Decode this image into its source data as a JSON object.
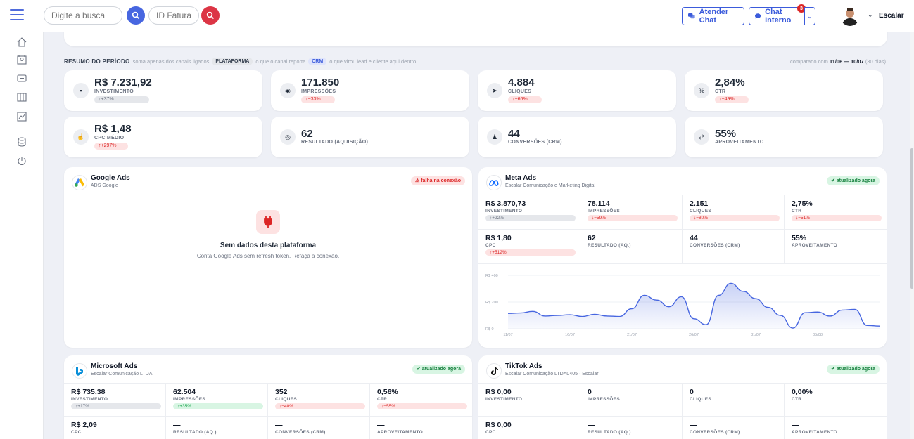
{
  "header": {
    "search_placeholder": "Digite a busca",
    "invoice_placeholder": "ID Fatura",
    "attend_chat": "Atender Chat",
    "internal_chat": "Chat Interno",
    "internal_chat_count": "3",
    "user_name": "Escalar"
  },
  "summary": {
    "title": "RESUMO DO PERÍODO",
    "text1": "soma apenas dos canais ligados",
    "platform_pill": "PLATAFORMA",
    "text2": "o que o canal reporta",
    "crm_pill": "CRM",
    "text3": "o que virou lead e cliente aqui dentro",
    "compare_prefix": "comparado com",
    "compare_range": "11/06 — 10/07",
    "compare_days": "(30 dias)"
  },
  "kpis": [
    {
      "value": "R$ 7.231,92",
      "label": "INVESTIMENTO",
      "delta": "↑+37%",
      "kind": "neu",
      "icon": "wallet-icon"
    },
    {
      "value": "171.850",
      "label": "IMPRESSÕES",
      "delta": "↓−33%",
      "kind": "dn",
      "icon": "eye-icon"
    },
    {
      "value": "4.884",
      "label": "CLIQUES",
      "delta": "↓−66%",
      "kind": "dn",
      "icon": "cursor-icon"
    },
    {
      "value": "2,84%",
      "label": "CTR",
      "delta": "↓−49%",
      "kind": "dn",
      "icon": "percent-icon"
    },
    {
      "value": "R$ 1,48",
      "label": "CPC MÉDIO",
      "delta": "↑+297%",
      "kind": "upr",
      "icon": "hand-pointer-icon"
    },
    {
      "value": "62",
      "label": "RESULTADO (AQUISIÇÃO)",
      "delta": "",
      "kind": "",
      "icon": "target-icon"
    },
    {
      "value": "44",
      "label": "CONVERSÕES (CRM)",
      "delta": "",
      "kind": "",
      "icon": "user-check-icon"
    },
    {
      "value": "55%",
      "label": "APROVEITAMENTO",
      "delta": "",
      "kind": "",
      "icon": "exchange-icon"
    }
  ],
  "google": {
    "title": "Google Ads",
    "subtitle": "ADS Google",
    "status": "⚠ falha na conexão",
    "empty_title": "Sem dados desta plataforma",
    "empty_sub": "Conta Google Ads sem refresh token. Refaça a conexão."
  },
  "meta": {
    "title": "Meta Ads",
    "subtitle": "Escalar Comunicação e Marketing Digital",
    "status": "✔ atualizado agora",
    "cells": [
      {
        "value": "R$ 3.870,73",
        "label": "INVESTIMENTO",
        "delta": "↑+22%",
        "kind": "neu"
      },
      {
        "value": "78.114",
        "label": "IMPRESSÕES",
        "delta": "↓−59%",
        "kind": "dn"
      },
      {
        "value": "2.151",
        "label": "CLIQUES",
        "delta": "↓−80%",
        "kind": "dn"
      },
      {
        "value": "2,75%",
        "label": "CTR",
        "delta": "↓−51%",
        "kind": "dn"
      },
      {
        "value": "R$ 1,80",
        "label": "CPC",
        "delta": "↑+512%",
        "kind": "upr"
      },
      {
        "value": "62",
        "label": "RESULTADO (AQ.)",
        "delta": "",
        "kind": ""
      },
      {
        "value": "44",
        "label": "CONVERSÕES (CRM)",
        "delta": "",
        "kind": ""
      },
      {
        "value": "55%",
        "label": "APROVEITAMENTO",
        "delta": "",
        "kind": ""
      }
    ]
  },
  "microsoft": {
    "title": "Microsoft Ads",
    "subtitle": "Escalar Comunicação LTDA",
    "status": "✔ atualizado agora",
    "cells": [
      {
        "value": "R$ 735,38",
        "label": "INVESTIMENTO",
        "delta": "↑+17%",
        "kind": "neu"
      },
      {
        "value": "62.504",
        "label": "IMPRESSÕES",
        "delta": "↑+35%",
        "kind": "up"
      },
      {
        "value": "352",
        "label": "CLIQUES",
        "delta": "↓−40%",
        "kind": "dn"
      },
      {
        "value": "0,56%",
        "label": "CTR",
        "delta": "↓−55%",
        "kind": "dn"
      },
      {
        "value": "R$ 2,09",
        "label": "CPC",
        "delta": "",
        "kind": ""
      },
      {
        "value": "—",
        "label": "RESULTADO (AQ.)",
        "delta": "",
        "kind": ""
      },
      {
        "value": "—",
        "label": "CONVERSÕES (CRM)",
        "delta": "",
        "kind": ""
      },
      {
        "value": "—",
        "label": "APROVEITAMENTO",
        "delta": "",
        "kind": ""
      }
    ]
  },
  "tiktok": {
    "title": "TikTok Ads",
    "subtitle": "Escalar Comunicação LTDA0405 · Escalar",
    "status": "✔ atualizado agora",
    "cells": [
      {
        "value": "R$ 0,00",
        "label": "INVESTIMENTO",
        "delta": "",
        "kind": ""
      },
      {
        "value": "0",
        "label": "IMPRESSÕES",
        "delta": "",
        "kind": ""
      },
      {
        "value": "0",
        "label": "CLIQUES",
        "delta": "",
        "kind": ""
      },
      {
        "value": "0,00%",
        "label": "CTR",
        "delta": "",
        "kind": ""
      },
      {
        "value": "R$ 0,00",
        "label": "CPC",
        "delta": "",
        "kind": ""
      },
      {
        "value": "—",
        "label": "RESULTADO (AQ.)",
        "delta": "",
        "kind": ""
      },
      {
        "value": "—",
        "label": "CONVERSÕES (CRM)",
        "delta": "",
        "kind": ""
      },
      {
        "value": "—",
        "label": "APROVEITAMENTO",
        "delta": "",
        "kind": ""
      }
    ]
  },
  "chart_data": {
    "type": "area",
    "ylim": [
      0,
      400
    ],
    "yticks": [
      "R$ 0",
      "R$ 200",
      "R$ 400"
    ],
    "xticks": [
      "11/07",
      "16/07",
      "21/07",
      "26/07",
      "31/07",
      "05/08"
    ],
    "series": [
      {
        "values": [
          115,
          118,
          130,
          95,
          100,
          105,
          92,
          108,
          95,
          92,
          150,
          250,
          215,
          165,
          240,
          75,
          30,
          250,
          340,
          280,
          225,
          160,
          100,
          5,
          120,
          125,
          95,
          140,
          145,
          25,
          20
        ]
      }
    ],
    "color": "#4766e0"
  }
}
